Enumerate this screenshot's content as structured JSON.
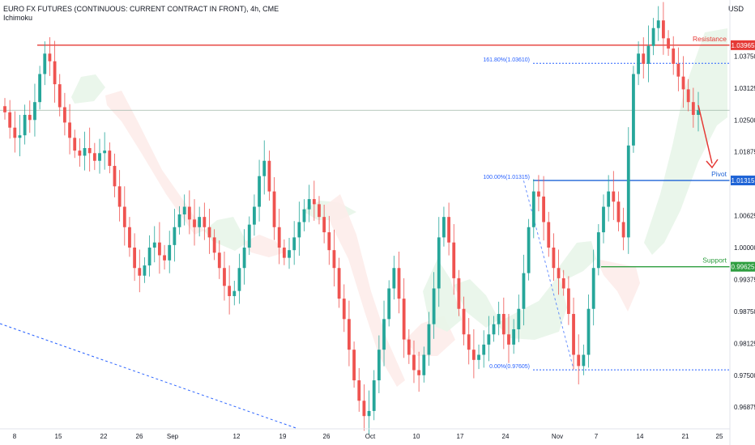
{
  "header": {
    "title": "EURO FX FUTURES (CONTINUOUS: CURRENT CONTRACT IN FRONT), 4h, CME",
    "indicator": "Ichimoku",
    "currency": "USD"
  },
  "chart_data": {
    "type": "candlestick",
    "y_range": [
      0.9645,
      1.0485
    ],
    "y_ticks": [
      "1.03750",
      "1.03125",
      "1.02500",
      "1.01875",
      "1.00625",
      "1.00000",
      "0.99375",
      "0.98750",
      "0.98125",
      "0.97500",
      "0.96875"
    ],
    "x_ticks": [
      "8",
      "15",
      "22",
      "26",
      "Sep",
      "12",
      "19",
      "26",
      "Oct",
      "10",
      "17",
      "24",
      "Nov",
      "7",
      "14",
      "21",
      "25"
    ],
    "levels": [
      {
        "name": "Resistance",
        "value": 1.03965,
        "label": "1.03965",
        "color": "#e53935"
      },
      {
        "name": "Pivot",
        "value": 1.01315,
        "label": "1.01315",
        "color": "#1e63d6"
      },
      {
        "name": "Support",
        "value": 0.99625,
        "label": "0.99625",
        "color": "#2e9e3f"
      }
    ],
    "fib": [
      {
        "label": "161.80%(1.03610)",
        "value": 1.0361
      },
      {
        "label": "100.00%(1.01315)",
        "value": 1.01315
      },
      {
        "label": "0.00%(0.97605)",
        "value": 0.97605
      }
    ],
    "current_price": 1.0269,
    "closes": [
      1.0265,
      1.0235,
      1.0215,
      1.022,
      1.026,
      1.025,
      1.0285,
      1.034,
      1.038,
      1.0365,
      1.032,
      1.0275,
      1.0245,
      1.0215,
      1.019,
      1.018,
      1.0195,
      1.0185,
      1.017,
      1.0185,
      1.019,
      1.016,
      1.012,
      1.008,
      1.004,
      1.0,
      0.996,
      0.9945,
      0.9965,
      1.0,
      1.001,
      0.9985,
      0.9975,
      1.0005,
      1.004,
      1.0065,
      1.008,
      1.0055,
      1.004,
      1.006,
      1.004,
      1.002,
      0.999,
      0.996,
      0.9925,
      0.9905,
      0.9915,
      0.996,
      1.0,
      1.0045,
      1.008,
      1.014,
      1.017,
      1.011,
      1.004,
      1.0,
      0.998,
      0.9995,
      1.002,
      1.005,
      1.0075,
      1.0095,
      1.0085,
      1.006,
      1.003,
      0.9995,
      0.996,
      0.99,
      0.986,
      0.98,
      0.974,
      0.97,
      0.967,
      0.968,
      0.974,
      0.98,
      0.986,
      0.992,
      0.996,
      0.99,
      0.982,
      0.979,
      0.976,
      0.975,
      0.979,
      0.985,
      0.992,
      1.002,
      1.006,
      1.001,
      0.994,
      0.988,
      0.983,
      0.98,
      0.978,
      0.979,
      0.981,
      0.983,
      0.985,
      0.987,
      0.983,
      0.981,
      0.984,
      0.988,
      0.995,
      1.004,
      1.011,
      1.01,
      1.005,
      1.0,
      0.996,
      0.994,
      0.992,
      0.987,
      0.979,
      0.9768,
      0.979,
      0.988,
      0.996,
      1.003,
      1.008,
      1.011,
      1.009,
      1.005,
      1.002,
      1.02,
      1.034,
      1.038,
      1.036,
      1.0395,
      1.043,
      1.0445,
      1.041,
      1.039,
      1.036,
      1.0335,
      1.031,
      1.0285,
      1.026,
      1.0269
    ]
  }
}
